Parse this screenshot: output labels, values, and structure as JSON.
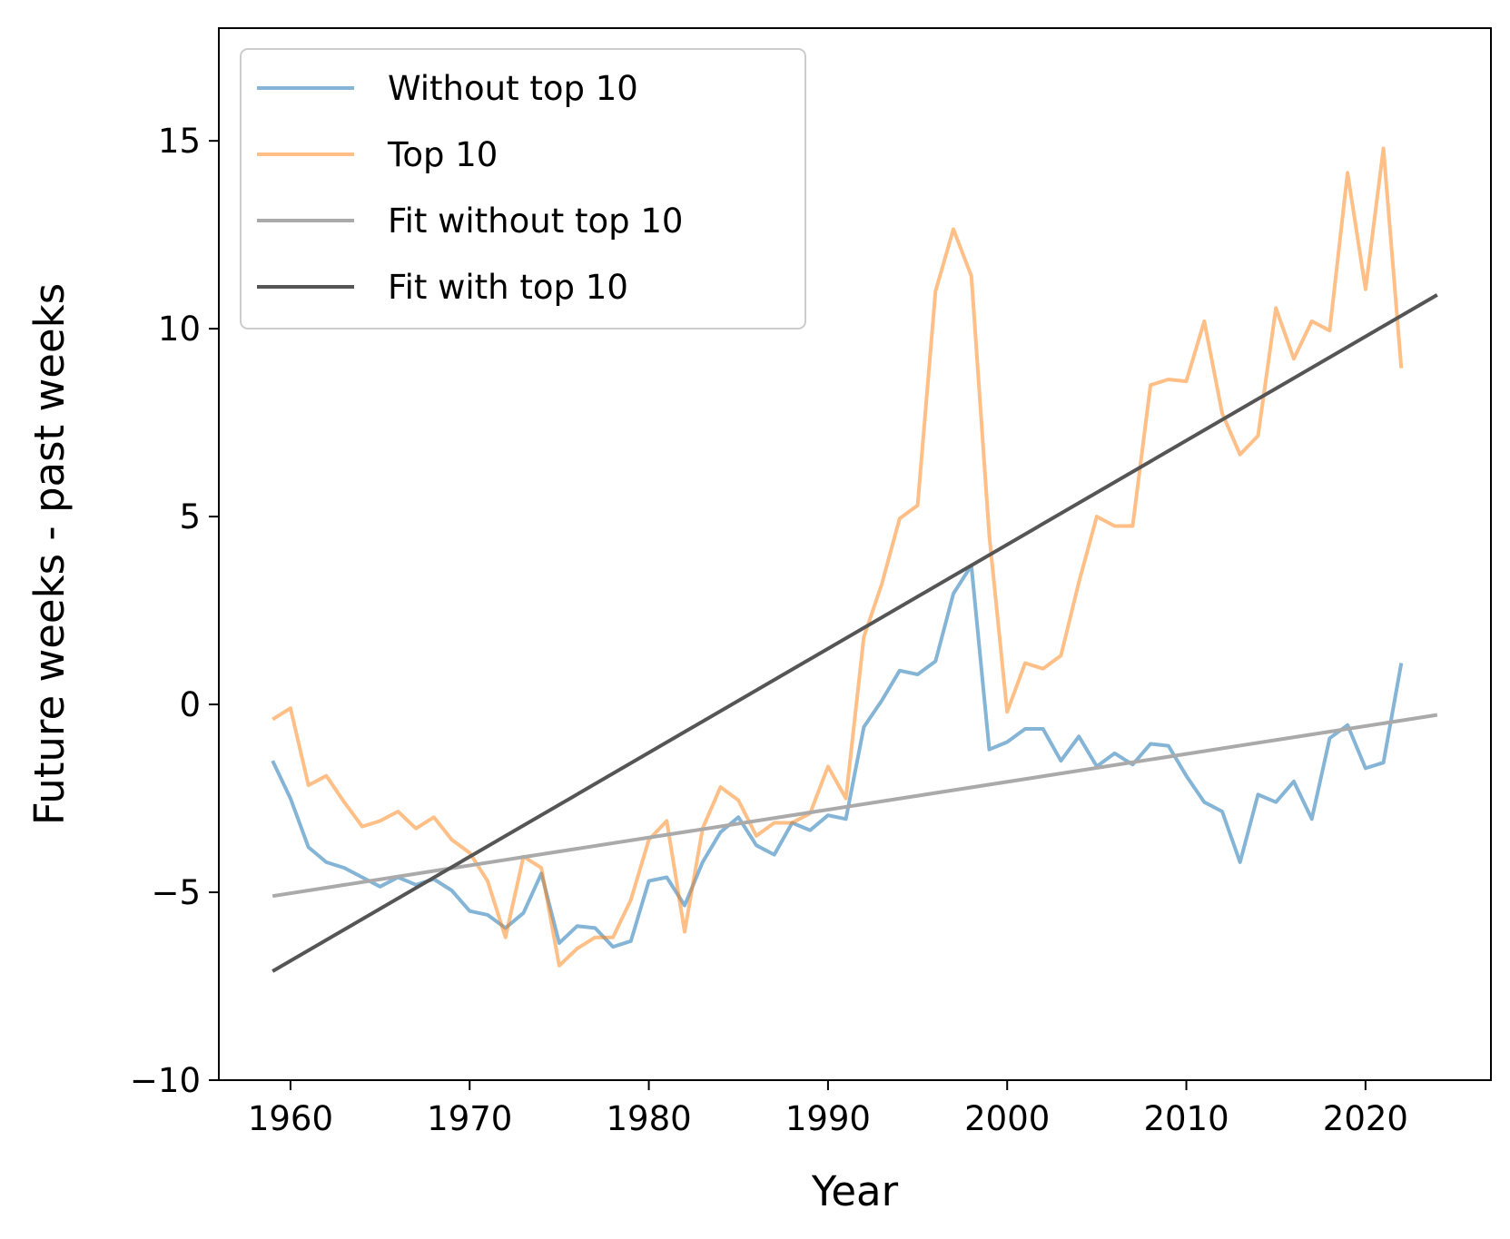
{
  "chart_data": {
    "type": "line",
    "title": "",
    "xlabel": "Year",
    "ylabel": "Future weeks - past weeks",
    "xlim": [
      1956,
      2027
    ],
    "ylim": [
      -10,
      18
    ],
    "xticks": [
      1960,
      1970,
      1980,
      1990,
      2000,
      2010,
      2020
    ],
    "yticks": [
      -10,
      -5,
      0,
      5,
      10,
      15
    ],
    "ytick_labels": [
      "−10",
      "−5",
      "0",
      "5",
      "10",
      "15"
    ],
    "grid": false,
    "legend_position": "top-left",
    "x": [
      1959,
      1960,
      1961,
      1962,
      1963,
      1964,
      1965,
      1966,
      1967,
      1968,
      1969,
      1970,
      1971,
      1972,
      1973,
      1974,
      1975,
      1976,
      1977,
      1978,
      1979,
      1980,
      1981,
      1982,
      1983,
      1984,
      1985,
      1986,
      1987,
      1988,
      1989,
      1990,
      1991,
      1992,
      1993,
      1994,
      1995,
      1996,
      1997,
      1998,
      1999,
      2000,
      2001,
      2002,
      2003,
      2004,
      2005,
      2006,
      2007,
      2008,
      2009,
      2010,
      2011,
      2012,
      2013,
      2014,
      2015,
      2016,
      2017,
      2018,
      2019,
      2020,
      2021,
      2022
    ],
    "series": [
      {
        "name": "Without top 10",
        "color": "#1f77b4",
        "opacity": 0.55,
        "values": [
          -1.5,
          -2.5,
          -3.8,
          -4.2,
          -4.35,
          -4.6,
          -4.85,
          -4.6,
          -4.8,
          -4.65,
          -4.95,
          -5.5,
          -5.6,
          -5.95,
          -5.55,
          -4.5,
          -6.35,
          -5.9,
          -5.95,
          -6.45,
          -6.3,
          -4.7,
          -4.6,
          -5.35,
          -4.2,
          -3.4,
          -3.0,
          -3.75,
          -4.0,
          -3.15,
          -3.35,
          -2.95,
          -3.05,
          -0.6,
          0.1,
          0.9,
          0.8,
          1.15,
          2.95,
          3.7,
          -1.2,
          -1.0,
          -0.65,
          -0.65,
          -1.5,
          -0.85,
          -1.65,
          -1.3,
          -1.6,
          -1.05,
          -1.1,
          -1.9,
          -2.6,
          -2.85,
          -4.2,
          -2.4,
          -2.6,
          -2.05,
          -3.05,
          -0.9,
          -0.55,
          -1.7,
          -1.55,
          1.1
        ]
      },
      {
        "name": "Top 10",
        "color": "#ff7f0e",
        "opacity": 0.5,
        "values": [
          -0.4,
          -0.1,
          -2.15,
          -1.9,
          -2.6,
          -3.25,
          -3.1,
          -2.85,
          -3.3,
          -3.0,
          -3.6,
          -3.95,
          -4.7,
          -6.2,
          -4.05,
          -4.35,
          -6.95,
          -6.5,
          -6.2,
          -6.2,
          -5.2,
          -3.6,
          -3.1,
          -6.05,
          -3.3,
          -2.2,
          -2.55,
          -3.5,
          -3.15,
          -3.15,
          -2.9,
          -1.65,
          -2.5,
          1.8,
          3.2,
          4.95,
          5.3,
          11.0,
          12.65,
          11.4,
          4.5,
          -0.2,
          1.1,
          0.95,
          1.3,
          3.25,
          5.0,
          4.75,
          4.75,
          8.5,
          8.65,
          8.6,
          10.2,
          7.75,
          6.65,
          7.15,
          10.55,
          9.2,
          10.2,
          9.95,
          14.15,
          11.05,
          14.8,
          8.95
        ]
      }
    ],
    "fits": [
      {
        "name": "Fit without top 10",
        "color": "#aaaaaa",
        "x": [
          1959,
          2024
        ],
        "values": [
          -5.1,
          -0.28
        ]
      },
      {
        "name": "Fit with top 10",
        "color": "#555555",
        "x": [
          1959,
          2024
        ],
        "values": [
          -7.1,
          10.9
        ]
      }
    ]
  }
}
